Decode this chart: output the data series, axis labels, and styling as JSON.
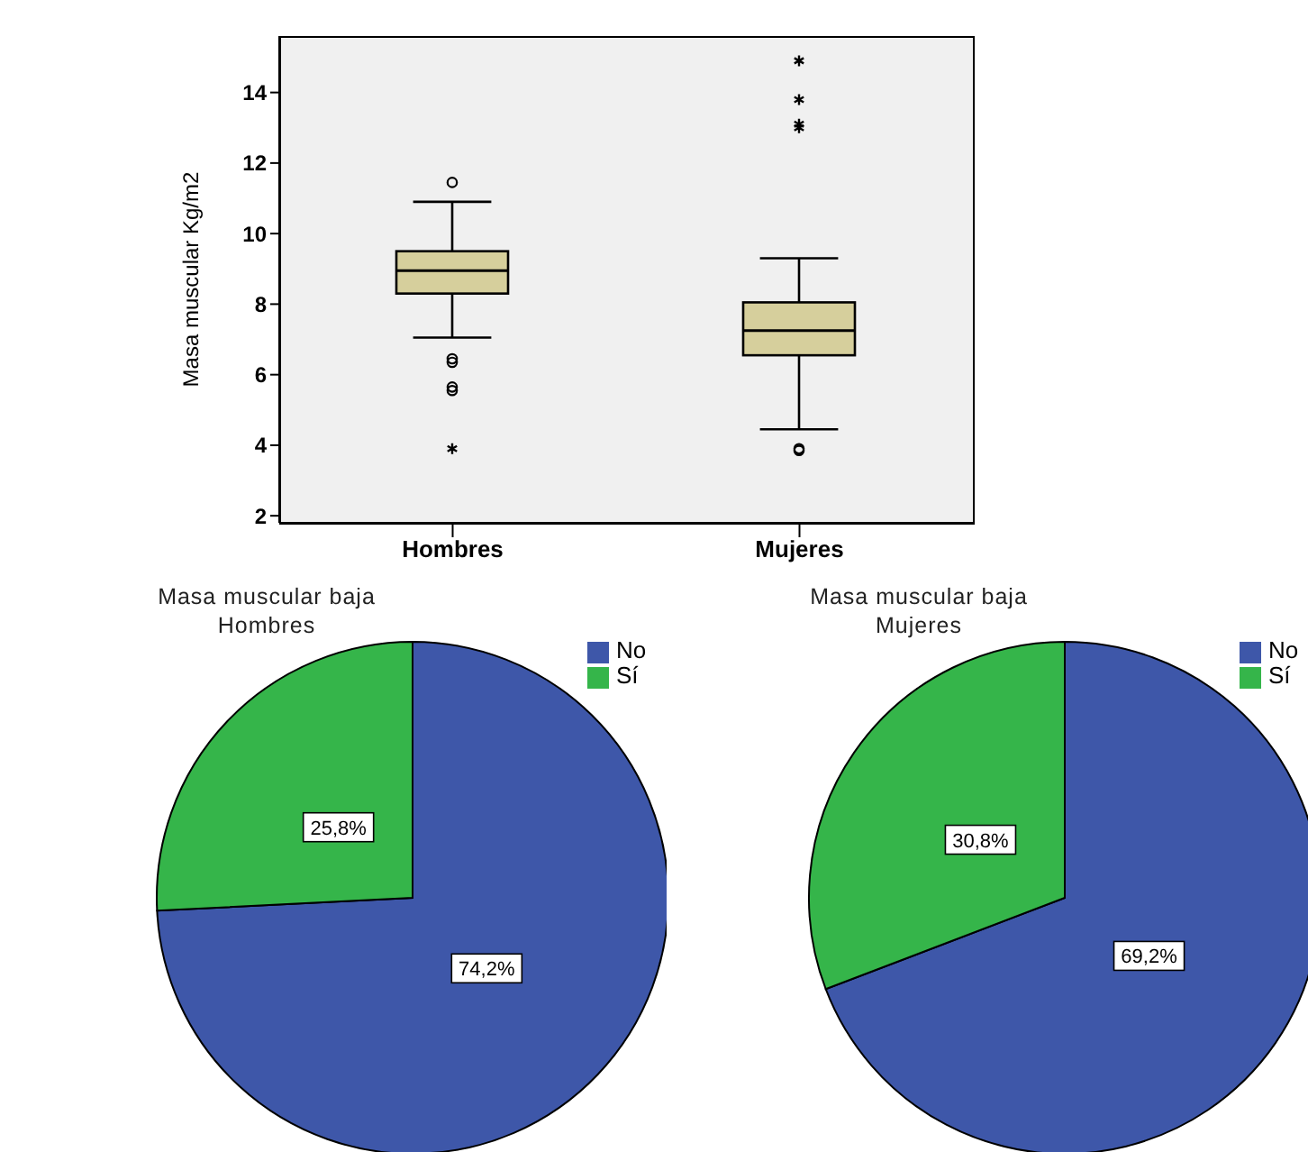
{
  "chart_data": [
    {
      "type": "box",
      "ylabel": "Masa muscular Kg/m2",
      "categories": [
        "Hombres",
        "Mujeres"
      ],
      "color": "#d6cf9c",
      "ylim": [
        1.8,
        15.6
      ],
      "yticks": [
        2,
        4,
        6,
        8,
        10,
        12,
        14
      ],
      "grid": false,
      "boxes": [
        {
          "low": 7.05,
          "q1": 8.3,
          "median": 8.95,
          "q3": 9.5,
          "high": 10.9,
          "outliers": [
            11.45,
            6.45,
            6.35,
            5.65,
            5.55,
            3.9
          ]
        },
        {
          "low": 4.45,
          "q1": 6.55,
          "median": 7.25,
          "q3": 8.05,
          "high": 9.3,
          "outliers": [
            3.9,
            3.85,
            13.0,
            13.1,
            13.8,
            14.9
          ]
        }
      ]
    },
    {
      "type": "pie",
      "title": "Masa muscular baja",
      "subtitle": "Hombres",
      "categories": [
        "No",
        "Sí"
      ],
      "values": [
        74.2,
        25.8
      ],
      "colors": [
        "#3e57a9",
        "#35b54a"
      ],
      "value_labels": [
        "74,2%",
        "25,8%"
      ],
      "legend": "top right"
    },
    {
      "type": "pie",
      "title": "Masa muscular baja",
      "subtitle": "Mujeres",
      "categories": [
        "No",
        "Sí"
      ],
      "values": [
        69.2,
        30.8
      ],
      "colors": [
        "#3e57a9",
        "#35b54a"
      ],
      "value_labels": [
        "69,2%",
        "30,8%"
      ],
      "legend": "top right"
    }
  ]
}
